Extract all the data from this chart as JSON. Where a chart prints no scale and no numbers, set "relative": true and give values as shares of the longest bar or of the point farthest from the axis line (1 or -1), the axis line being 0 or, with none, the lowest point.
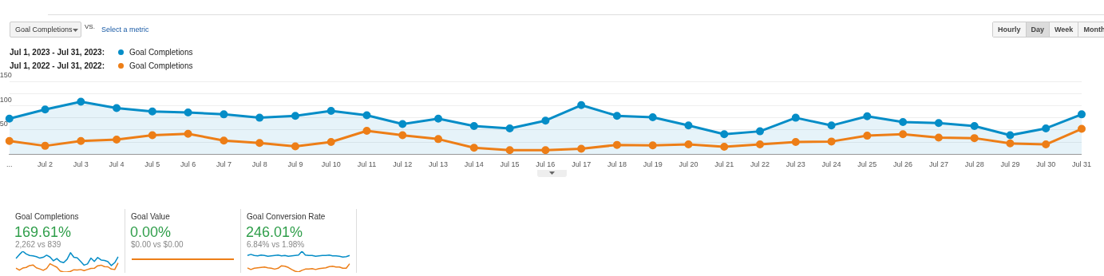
{
  "chart_data": [
    {
      "type": "line",
      "categories": [
        "...",
        "Jul 2",
        "Jul 3",
        "Jul 4",
        "Jul 5",
        "Jul 6",
        "Jul 7",
        "Jul 8",
        "Jul 9",
        "Jul 10",
        "Jul 11",
        "Jul 12",
        "Jul 13",
        "Jul 14",
        "Jul 15",
        "Jul 16",
        "Jul 17",
        "Jul 18",
        "Jul 19",
        "Jul 20",
        "Jul 21",
        "Jul 22",
        "Jul 23",
        "Jul 24",
        "Jul 25",
        "Jul 26",
        "Jul 27",
        "Jul 28",
        "Jul 29",
        "Jul 30",
        "Jul 31"
      ],
      "series": [
        {
          "name": "Goal Completions",
          "type": "area",
          "color": "#058dc7",
          "values": [
            73,
            92,
            108,
            95,
            88,
            86,
            82,
            75,
            79,
            89,
            80,
            62,
            73,
            58,
            53,
            69,
            101,
            79,
            76,
            59,
            41,
            47,
            75,
            59,
            78,
            66,
            64,
            58,
            39,
            53,
            82
          ]
        },
        {
          "name": "Goal Completions",
          "color": "#ed7e17",
          "values": [
            27,
            17,
            27,
            30,
            39,
            42,
            28,
            23,
            16,
            25,
            48,
            39,
            31,
            13,
            8,
            8,
            11,
            19,
            18,
            20,
            15,
            20,
            25,
            26,
            38,
            41,
            34,
            33,
            22,
            20,
            52
          ]
        }
      ],
      "ylim": [
        0,
        150
      ],
      "yticks": [
        {
          "value": 0,
          "label": null
        },
        {
          "value": 25,
          "label": null
        },
        50,
        {
          "value": 75,
          "label": null
        },
        100,
        {
          "value": 125,
          "label": null
        },
        150
      ],
      "grid": "y",
      "marker": "circle",
      "legend": "top left",
      "annotations": [
        "Jul 1, 2023 - Jul 31, 2023:",
        "Jul 1, 2022 - Jul 31, 2022:",
        "Goal Completions",
        "VS.",
        "Select a metric",
        "Hourly",
        "Day",
        "Week",
        "Month"
      ]
    },
    {
      "type": "line",
      "title": "Goal Completions",
      "relative": true,
      "marker": "none",
      "categories": [
        null,
        null,
        null,
        null,
        null,
        null,
        null,
        null,
        null,
        null,
        null,
        null,
        null,
        null,
        null,
        null,
        null,
        null,
        null,
        null,
        null,
        null,
        null,
        null,
        null,
        null,
        null,
        null,
        null,
        null,
        null
      ],
      "series": [
        {
          "color": "#058dc7",
          "values": [
            0.65,
            0.84,
            1,
            0.87,
            0.8,
            0.78,
            0.74,
            0.67,
            0.71,
            0.81,
            0.72,
            0.54,
            0.65,
            0.5,
            0.45,
            0.61,
            0.93,
            0.71,
            0.68,
            0.51,
            0.33,
            0.39,
            0.67,
            0.51,
            0.7,
            0.58,
            0.56,
            0.5,
            0.31,
            0.45,
            0.74
          ]
        },
        {
          "color": "#ed7e17",
          "values": [
            0.19,
            0.09,
            0.19,
            0.22,
            0.31,
            0.34,
            0.2,
            0.15,
            0.08,
            0.17,
            0.4,
            0.31,
            0.23,
            0.05,
            0,
            0,
            0.03,
            0.11,
            0.1,
            0.12,
            0.07,
            0.12,
            0.17,
            0.18,
            0.3,
            0.33,
            0.26,
            0.25,
            0.14,
            0.12,
            0.44
          ]
        }
      ],
      "annotations": [
        "169.61%",
        "2,262 vs 839"
      ]
    },
    {
      "type": "other",
      "title": "Goal Value",
      "annotations": [
        "0.00%",
        "$0.00 vs $0.00"
      ]
    },
    {
      "type": "line",
      "title": "Goal Conversion Rate",
      "relative": true,
      "marker": "none",
      "categories": [
        null,
        null,
        null,
        null,
        null,
        null,
        null,
        null,
        null,
        null,
        null,
        null,
        null,
        null,
        null,
        null,
        null,
        null,
        null,
        null,
        null,
        null,
        null,
        null,
        null,
        null,
        null,
        null,
        null,
        null,
        null
      ],
      "series": [
        {
          "color": "#058dc7",
          "values": [
            0.8,
            0.85,
            0.8,
            0.78,
            0.82,
            0.8,
            0.76,
            0.78,
            0.8,
            0.82,
            0.78,
            0.8,
            0.76,
            0.78,
            0.8,
            0.82,
            1,
            0.82,
            0.8,
            0.8,
            0.76,
            0.78,
            0.8,
            0.8,
            0.82,
            0.78,
            0.78,
            0.76,
            0.72,
            0.74,
            0.8
          ]
        },
        {
          "color": "#ed7e17",
          "values": [
            0.2,
            0.12,
            0.18,
            0.2,
            0.22,
            0.24,
            0.2,
            0.18,
            0.14,
            0.18,
            0.3,
            0.28,
            0.22,
            0.12,
            0.04,
            0,
            0.08,
            0.14,
            0.14,
            0.16,
            0.12,
            0.16,
            0.18,
            0.2,
            0.26,
            0.28,
            0.24,
            0.24,
            0.18,
            0.18,
            0.4
          ]
        }
      ],
      "annotations": [
        "246.01%",
        "6.84% vs 1.98%"
      ]
    }
  ]
}
